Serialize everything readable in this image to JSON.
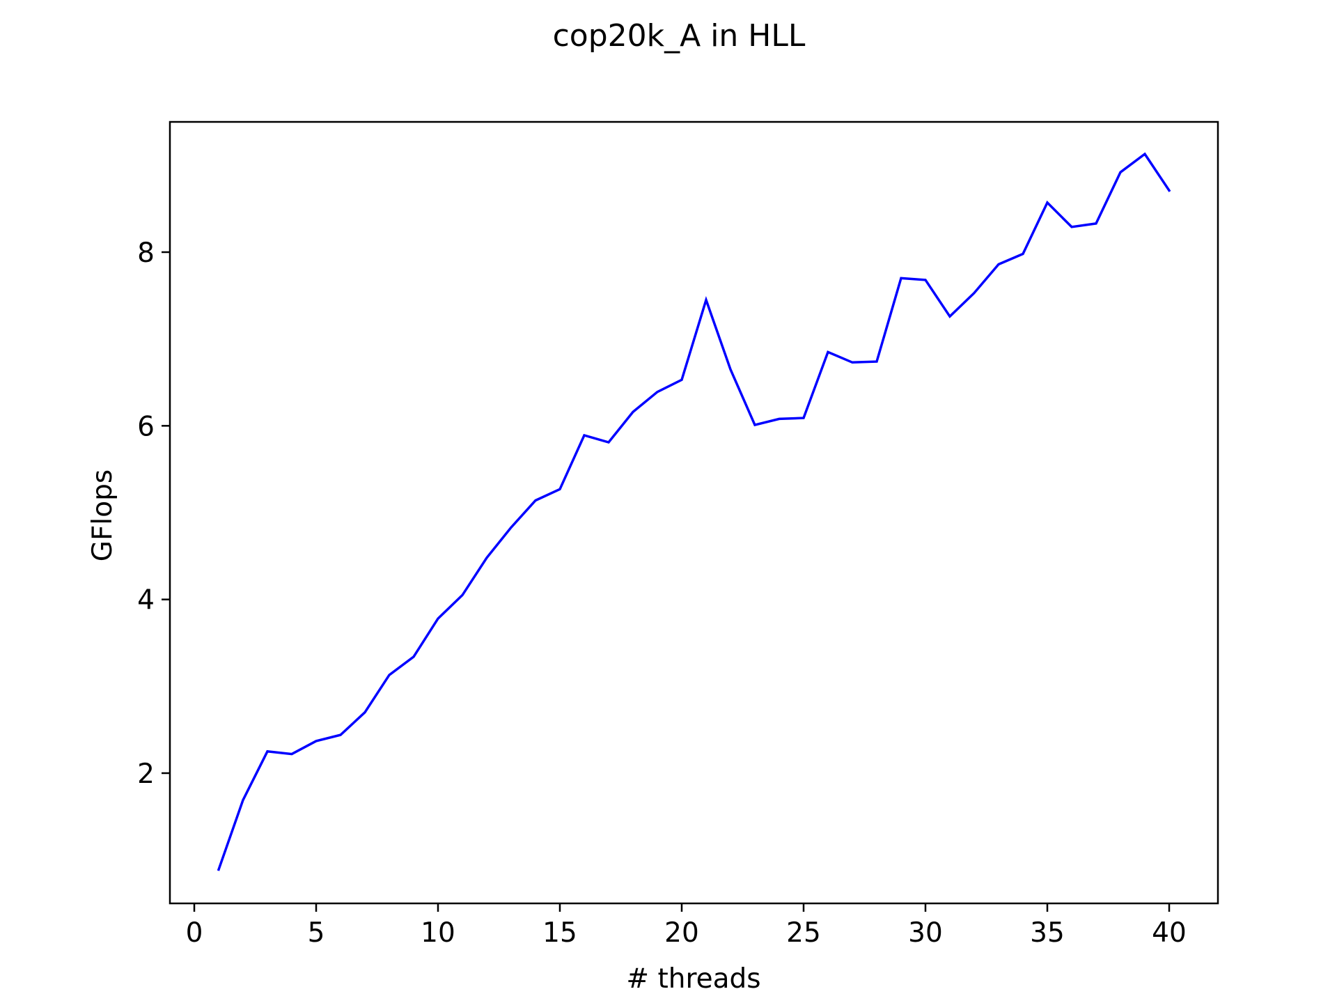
{
  "chart_data": {
    "type": "line",
    "title": "cop20k_A in HLL",
    "xlabel": "# threads",
    "ylabel": "GFlops",
    "xlim": [
      -1,
      42
    ],
    "ylim": [
      0.5,
      9.5
    ],
    "xticks": [
      0,
      5,
      10,
      15,
      20,
      25,
      30,
      35,
      40
    ],
    "yticks": [
      2,
      4,
      6,
      8
    ],
    "grid": false,
    "legend": "none",
    "series": [
      {
        "color": "#0000ff",
        "x": [
          1,
          2,
          3,
          4,
          5,
          6,
          7,
          8,
          9,
          10,
          11,
          12,
          13,
          14,
          15,
          16,
          17,
          18,
          19,
          20,
          21,
          22,
          23,
          24,
          25,
          26,
          27,
          28,
          29,
          30,
          31,
          32,
          33,
          34,
          35,
          36,
          37,
          38,
          39,
          40
        ],
        "y": [
          0.89,
          1.69,
          2.25,
          2.22,
          2.37,
          2.44,
          2.7,
          3.13,
          3.34,
          3.78,
          4.05,
          4.48,
          4.83,
          5.14,
          5.27,
          5.89,
          5.81,
          6.16,
          6.39,
          6.53,
          7.45,
          6.65,
          6.01,
          6.08,
          6.09,
          6.85,
          6.73,
          6.74,
          7.7,
          7.68,
          7.26,
          7.53,
          7.86,
          7.98,
          8.57,
          8.29,
          8.33,
          8.92,
          9.13,
          8.71
        ]
      }
    ]
  }
}
